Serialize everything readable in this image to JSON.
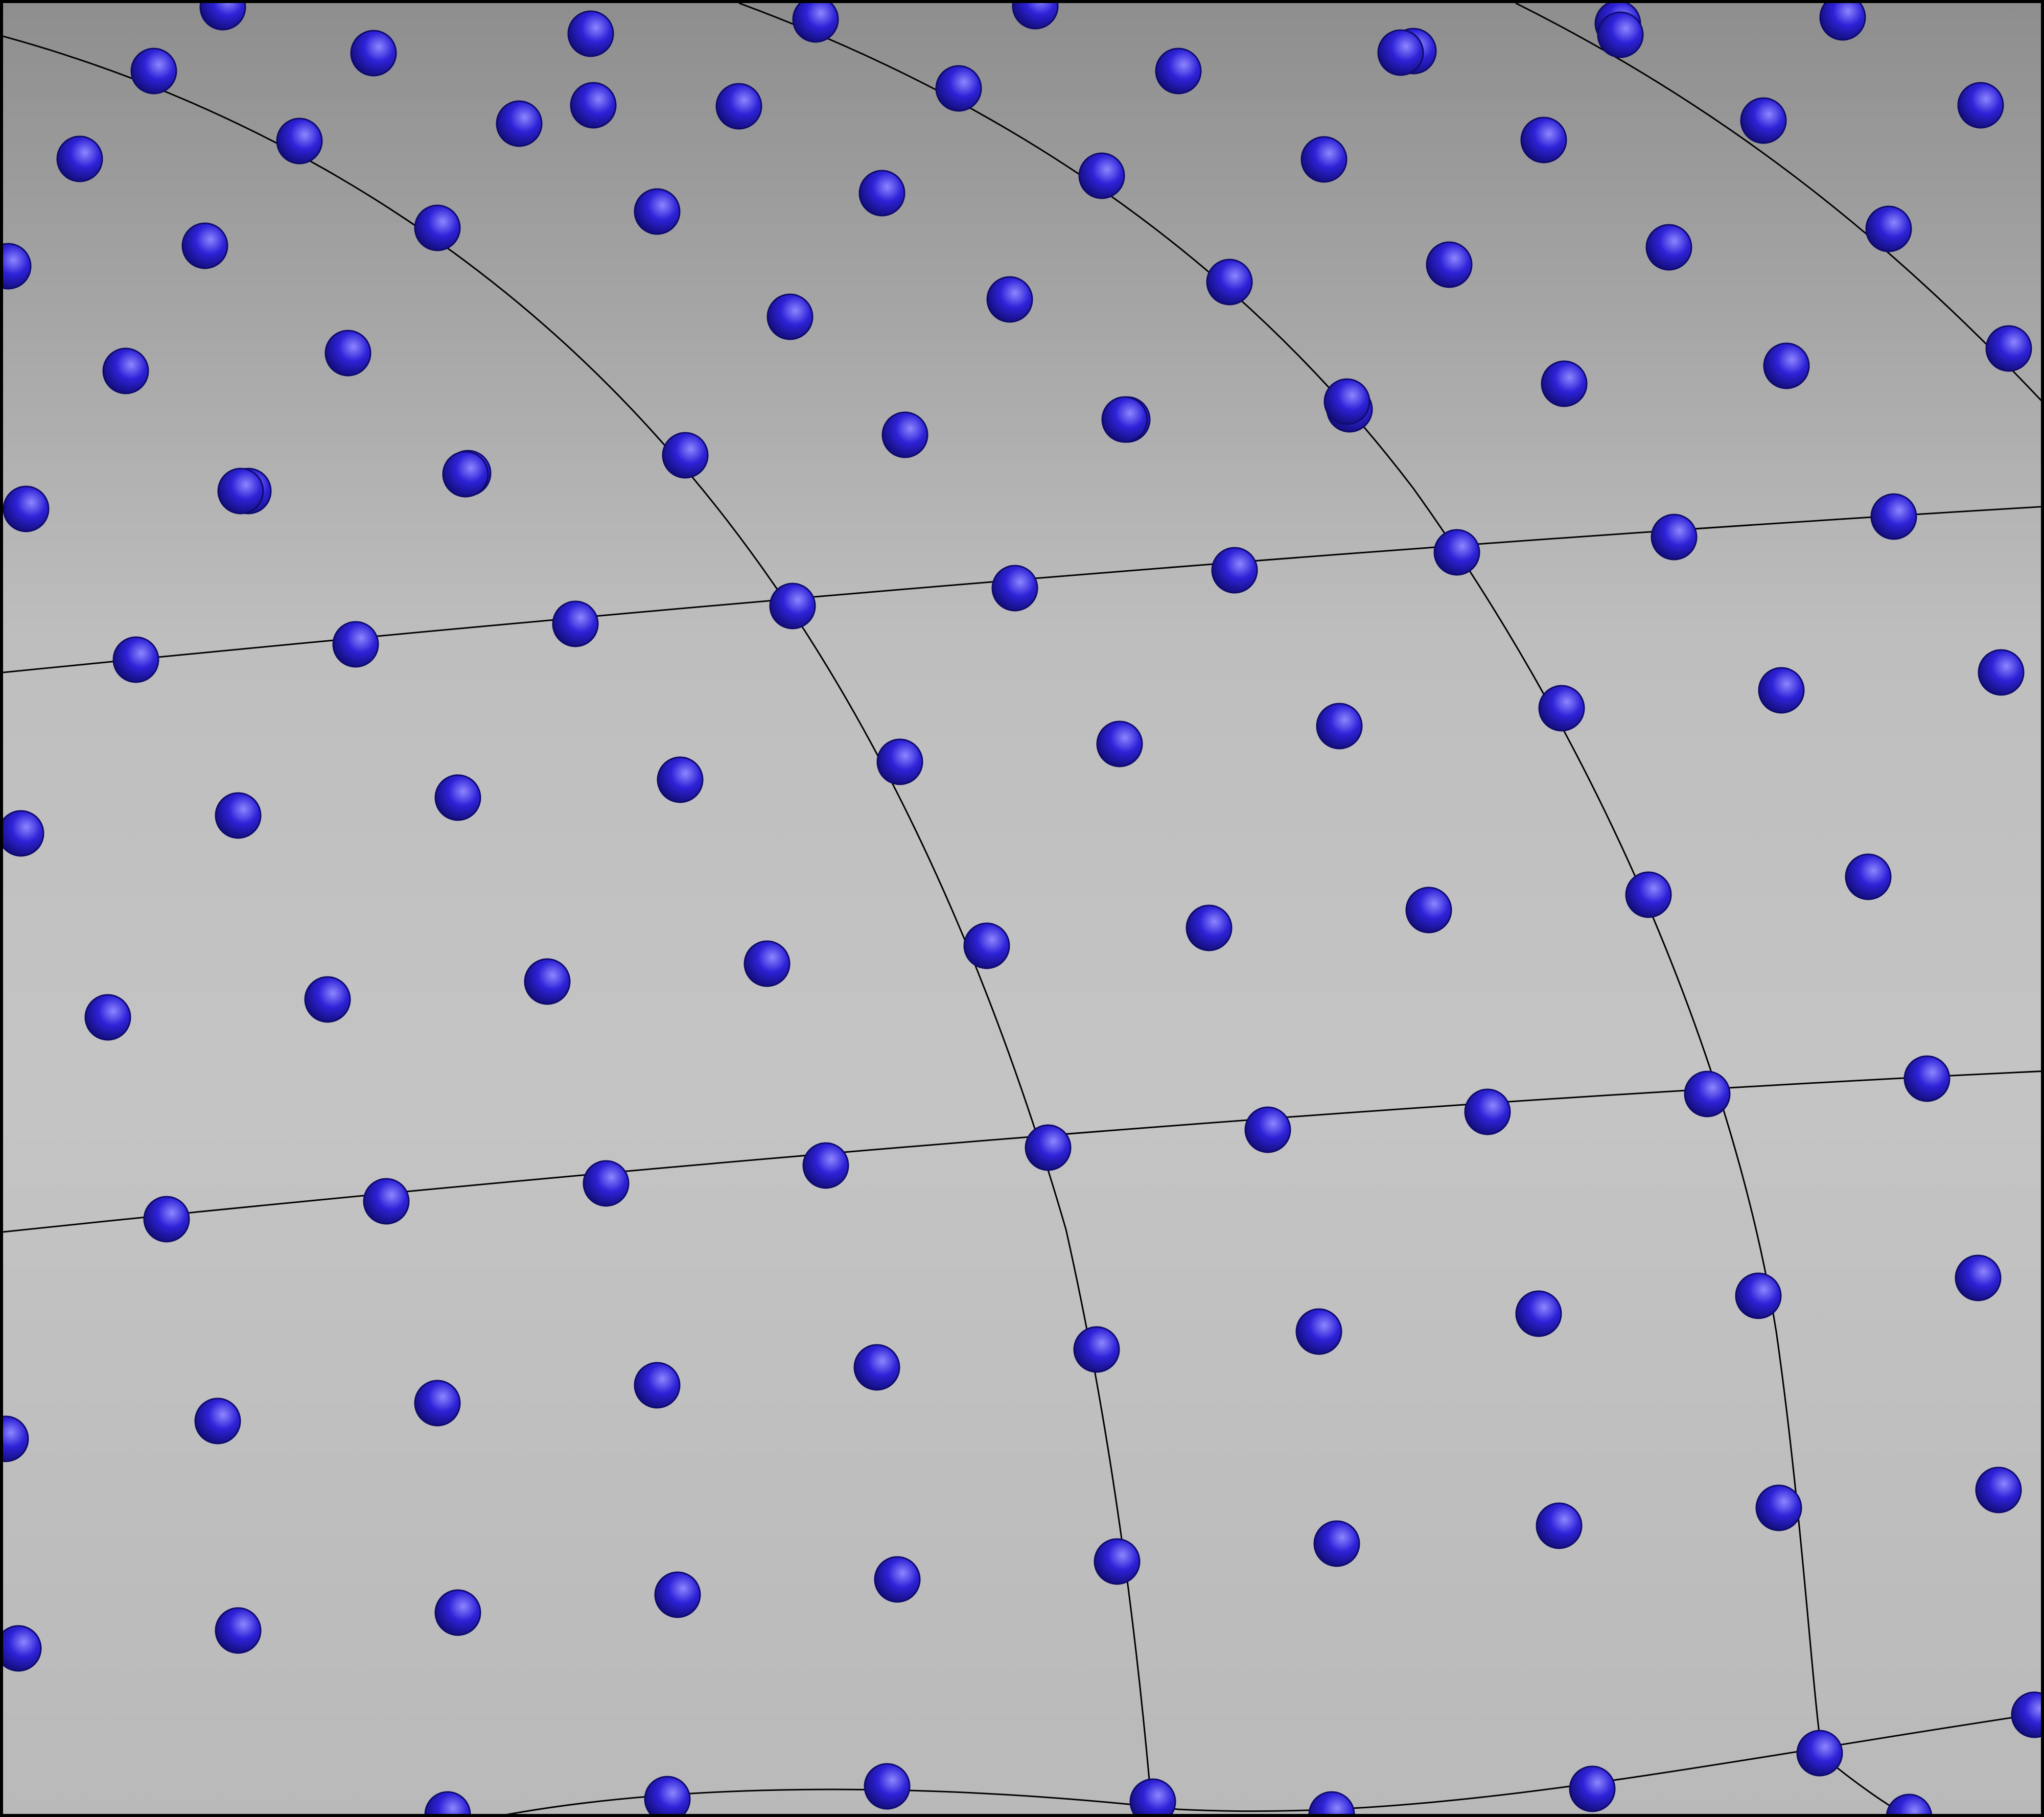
{
  "scene": {
    "background_top_color": "#8e8e8e",
    "background_mid_color": "#c4c4c4",
    "background_bottom_color": "#b9b9b9",
    "grid_line_color": "#000000",
    "dot_base_color": "#2e22d8",
    "dot_light_color": "#8d86ff",
    "dot_dark_color": "#0f0b6c",
    "border_color": "#000000"
  }
}
